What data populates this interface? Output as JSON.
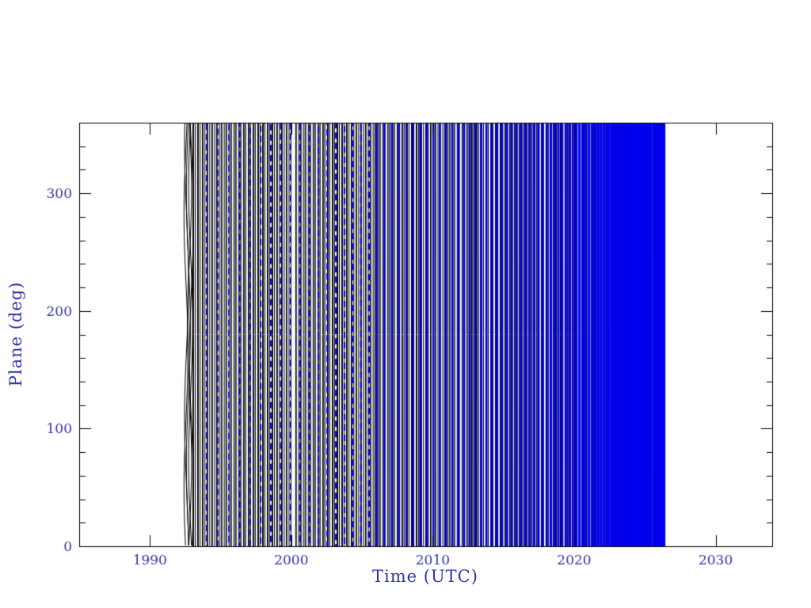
{
  "figure": {
    "background": "#ffffff",
    "frame_color": "#000000",
    "label_color": "#3333aa",
    "series_black_color": "#000000",
    "series_blue_color": "#0000ee"
  },
  "chart_data": {
    "type": "line",
    "title": "",
    "xlabel": "Time (UTC)",
    "ylabel": "Plane (deg)",
    "xlim": [
      1985,
      2034
    ],
    "ylim": [
      0,
      360
    ],
    "xticks": [
      1990,
      2000,
      2010,
      2020,
      2030
    ],
    "x_minor_step": 2,
    "yticks": [
      0,
      100,
      200,
      300
    ],
    "y_minor_step": 20,
    "grid": false,
    "legend": "none",
    "note": "Rapidly wrapping plane angle (0-360 deg) versus time; aliasing renders the black curve as a dense field of near-vertical lines from ~1992.6 to ~2026.4, with a blue overlay whose stripe frequency increases with time until it merges into a solid blue band ending ~2026.4. Region before ~1992.6 and after ~2026.4 is empty.",
    "series": [
      {
        "name": "plane-angle-wrapped-black",
        "color": "#000000",
        "style": "dense-vertical-wrap",
        "t_start": 1992.55,
        "t_sparse_end": 1993.0,
        "t_end": 2026.45,
        "wrap_range": [
          0,
          360
        ],
        "approx_line_spacing_years": 0.112,
        "light_gap": [
          2000.05,
          2000.28
        ],
        "sparse_lines": [
          1992.55,
          1992.59,
          1992.72,
          1992.8,
          1992.88,
          1992.94
        ]
      },
      {
        "name": "plane-angle-overlay-blue",
        "color": "#0000ee",
        "style": "chirped-stripes",
        "t_start": 1994.0,
        "t_end": 2026.45,
        "stripe_interval_start_years": 0.8,
        "stripe_interval_end_years": 0.12,
        "dashed_until": 2006,
        "solid_band": [
          2025.5,
          2026.45
        ]
      }
    ]
  }
}
